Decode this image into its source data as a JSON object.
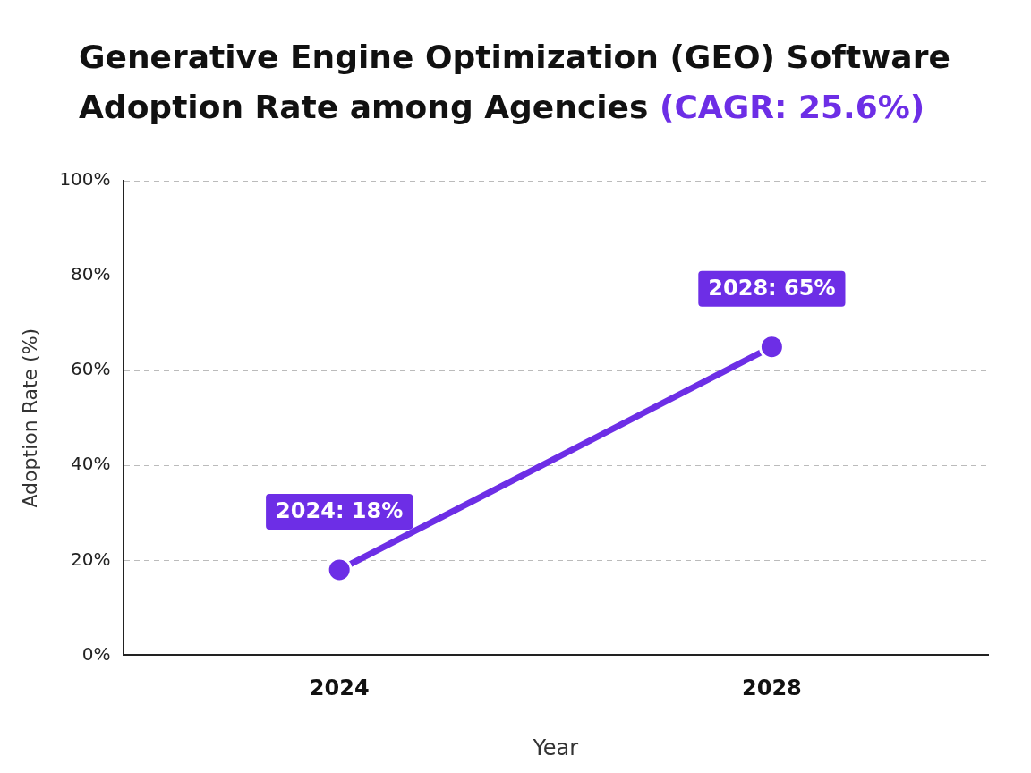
{
  "chart_data": {
    "type": "line",
    "title": "Generative Engine Optimization (GEO) Software Adoption Rate among Agencies",
    "subtitle": "(CAGR: 25.6%)",
    "xlabel": "Year",
    "ylabel": "Adoption Rate (%)",
    "categories": [
      "2024",
      "2028"
    ],
    "values": [
      18,
      65
    ],
    "color": "#6d2ee6",
    "value_labels": [
      "2024: 18%",
      "2028: 65%"
    ],
    "ylim": [
      0,
      100
    ],
    "yticks": [
      {
        "value": 0,
        "label": "0%"
      },
      {
        "value": 20,
        "label": "20%"
      },
      {
        "value": 40,
        "label": "40%"
      },
      {
        "value": 60,
        "label": "60%"
      },
      {
        "value": 80,
        "label": "80%"
      },
      {
        "value": 100,
        "label": "100%"
      }
    ],
    "grid": "y",
    "legend": false,
    "marker": "circle",
    "line_style": "solid"
  }
}
